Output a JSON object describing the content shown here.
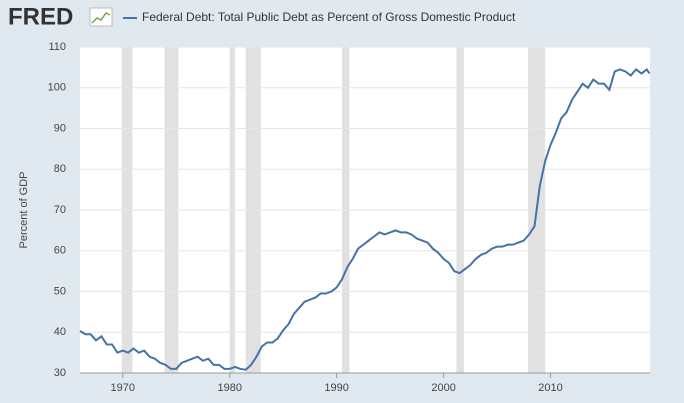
{
  "brand": "FRED",
  "chart_data": {
    "type": "line",
    "series": [
      {
        "name": "Federal Debt: Total Public Debt as Percent of Gross Domestic Product",
        "color": "#4572a7",
        "x": [
          1966,
          1966.5,
          1967,
          1967.5,
          1968,
          1968.5,
          1969,
          1969.5,
          1970,
          1970.5,
          1971,
          1971.5,
          1972,
          1972.5,
          1973,
          1973.5,
          1974,
          1974.5,
          1975,
          1975.5,
          1976,
          1976.5,
          1977,
          1977.5,
          1978,
          1978.5,
          1979,
          1979.5,
          1980,
          1980.5,
          1981,
          1981.5,
          1982,
          1982.5,
          1983,
          1983.5,
          1984,
          1984.5,
          1985,
          1985.5,
          1986,
          1986.5,
          1987,
          1987.5,
          1988,
          1988.5,
          1989,
          1989.5,
          1990,
          1990.5,
          1991,
          1991.5,
          1992,
          1992.5,
          1993,
          1993.5,
          1994,
          1994.5,
          1995,
          1995.5,
          1996,
          1996.5,
          1997,
          1997.5,
          1998,
          1998.5,
          1999,
          1999.5,
          2000,
          2000.5,
          2001,
          2001.5,
          2002,
          2002.5,
          2003,
          2003.5,
          2004,
          2004.5,
          2005,
          2005.5,
          2006,
          2006.5,
          2007,
          2007.5,
          2008,
          2008.5,
          2009,
          2009.5,
          2010,
          2010.5,
          2011,
          2011.5,
          2012,
          2012.5,
          2013,
          2013.5,
          2014,
          2014.5,
          2015,
          2015.5,
          2016,
          2016.5,
          2017,
          2017.5,
          2018,
          2018.5,
          2019,
          2019.25
        ],
        "values": [
          40.3,
          39.5,
          39.5,
          38,
          39,
          37,
          37,
          35,
          35.5,
          35,
          36,
          35,
          35.5,
          34,
          33.5,
          32.5,
          32,
          31,
          31,
          32.5,
          33,
          33.5,
          34,
          33,
          33.5,
          32,
          32,
          31,
          31,
          31.5,
          31,
          30.8,
          32,
          34,
          36.5,
          37.5,
          37.5,
          38.5,
          40.5,
          42,
          44.5,
          46,
          47.5,
          48,
          48.5,
          49.5,
          49.5,
          50,
          51,
          53,
          56,
          58,
          60.5,
          61.5,
          62.5,
          63.5,
          64.5,
          64,
          64.5,
          65,
          64.5,
          64.5,
          64,
          63,
          62.5,
          62,
          60.5,
          59.5,
          58,
          57,
          55,
          54.5,
          55.5,
          56.5,
          58,
          59,
          59.5,
          60.5,
          61,
          61,
          61.5,
          61.5,
          62,
          62.5,
          64,
          66,
          76,
          82,
          86,
          89,
          92.5,
          94,
          97,
          99,
          101,
          100,
          102,
          101,
          101,
          99.5,
          104,
          104.5,
          104,
          103,
          104.5,
          103.5,
          104.5,
          103.5
        ]
      }
    ],
    "recessions": [
      [
        1969.9,
        1970.9
      ],
      [
        1973.9,
        1975.2
      ],
      [
        1980.0,
        1980.5
      ],
      [
        1981.5,
        1982.9
      ],
      [
        1990.5,
        1991.2
      ],
      [
        2001.2,
        2001.9
      ],
      [
        2007.9,
        2009.5
      ]
    ],
    "y_label": "Percent of GDP",
    "xlim": [
      1966,
      2019.3
    ],
    "xticks": [
      1970,
      1980,
      1990,
      2000,
      2010
    ],
    "ylim": [
      30,
      110
    ],
    "yticks": [
      30,
      40,
      50,
      60,
      70,
      80,
      90,
      100,
      110
    ],
    "grid": true
  }
}
